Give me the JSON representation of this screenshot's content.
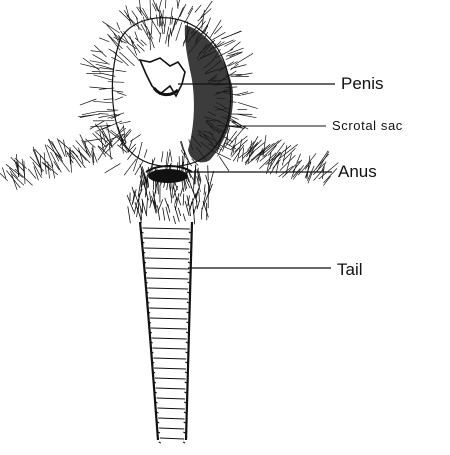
{
  "diagram": {
    "labels": {
      "penis": "Penis",
      "scrotal_sac": "Scrotal sac",
      "anus": "Anus",
      "tail": "Tail"
    },
    "colors": {
      "ink": "#111111",
      "background": "#ffffff"
    }
  }
}
